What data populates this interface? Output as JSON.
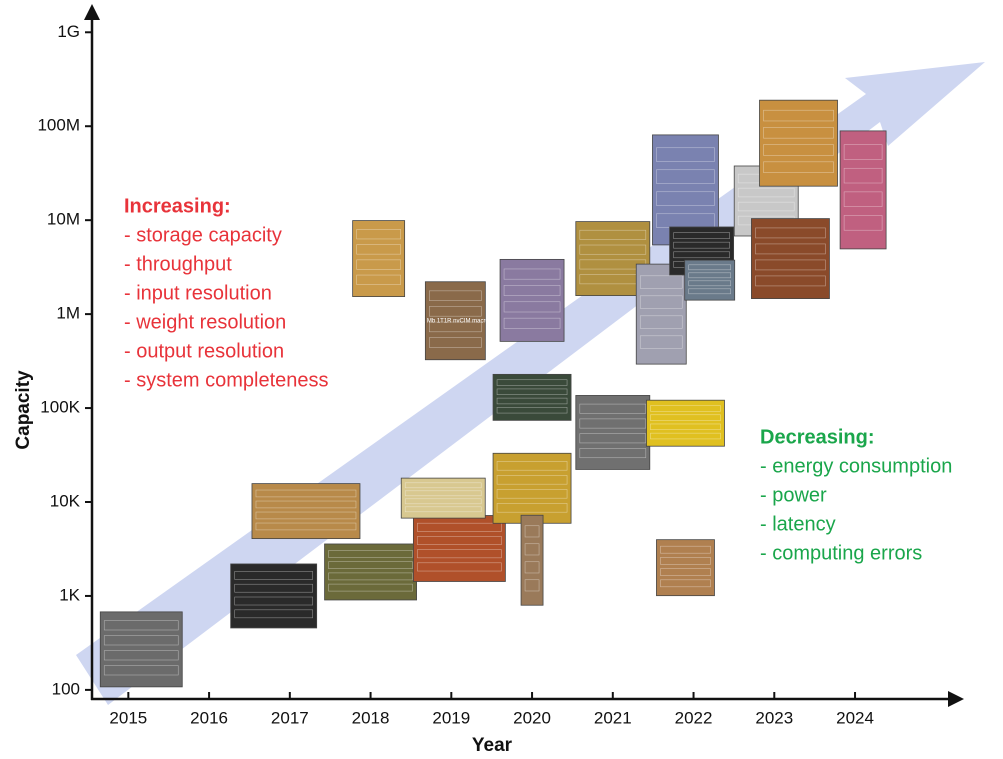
{
  "chart_data": {
    "type": "scatter",
    "xlabel": "Year",
    "ylabel": "Capacity",
    "log_y": true,
    "xlim": [
      2014.55,
      2025.3
    ],
    "ylim": [
      80,
      2000000000
    ],
    "xticks": [
      2015,
      2016,
      2017,
      2018,
      2019,
      2020,
      2021,
      2022,
      2023,
      2024
    ],
    "yticks": [
      {
        "value": 100,
        "label": "100"
      },
      {
        "value": 1000,
        "label": "1K"
      },
      {
        "value": 10000,
        "label": "10K"
      },
      {
        "value": 100000,
        "label": "100K"
      },
      {
        "value": 1000000,
        "label": "1M "
      },
      {
        "value": 10000000,
        "label": "10M"
      },
      {
        "value": 100000000,
        "label": "100M"
      },
      {
        "value": 1000000000,
        "label": "1G"
      }
    ],
    "x": [
      2015.16,
      2016.8,
      2017.2,
      2018.0,
      2018.1,
      2019.05,
      2019.1,
      2018.9,
      2020.0,
      2020.0,
      2020.0,
      2020.0,
      2021.0,
      2021.0,
      2021.6,
      2021.9,
      2021.9,
      2021.9,
      2022.1,
      2022.2,
      2022.9,
      2023.2,
      2023.3,
      2024.1
    ],
    "values": [
      270,
      1000,
      8000,
      1800,
      3900000,
      850000,
      3200,
      11000,
      14000,
      2400,
      130000,
      1400000,
      55000,
      3900000,
      1000000,
      69000,
      2000,
      21000000,
      4700000,
      2300000,
      16000000,
      3900000,
      66000000,
      21000000
    ],
    "colors": [
      "#6b6b6b",
      "#2a2a2a",
      "#b88a4a",
      "#6b6a3a",
      "#c99a4a",
      "#8a6a4a",
      "#b0502a",
      "#d8c890",
      "#c8a030",
      "#9a7a5a",
      "#3a4a3a",
      "#8a7aa0",
      "#707070",
      "#b09040",
      "#a0a0b0",
      "#e0c020",
      "#b08050",
      "#7a82b0",
      "#2a2a2a",
      "#6a7a8a",
      "#c8c8c8",
      "#8a4a2a",
      "#c89040",
      "#c06080"
    ],
    "annotations": [
      "1 Mb 1T1R nvCIM macro"
    ],
    "increasing": {
      "title": "Increasing:",
      "items": [
        "- storage capacity",
        "- throughput",
        "- input resolution",
        "- weight resolution",
        "- output resolution",
        "- system completeness"
      ],
      "color": "#e8333a"
    },
    "decreasing": {
      "title": "Decreasing:",
      "items": [
        "- energy consumption",
        "- power",
        "- latency",
        "- computing errors"
      ],
      "color": "#1aa64b"
    }
  }
}
